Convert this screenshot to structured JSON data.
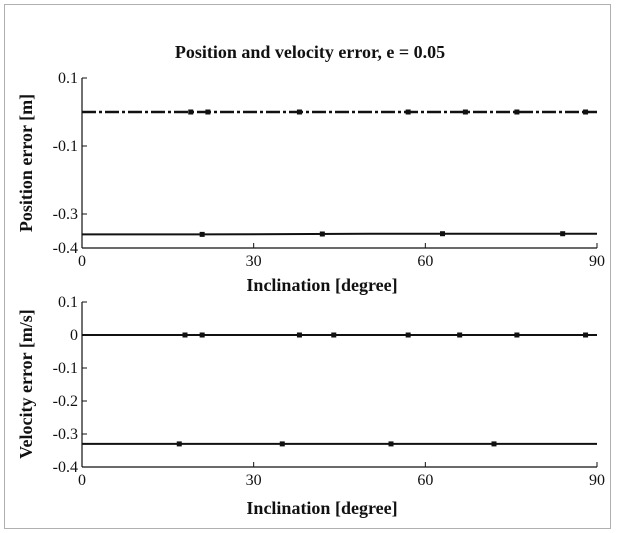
{
  "title": "Position and velocity error, e = 0.05",
  "chart_data": [
    {
      "type": "line",
      "xlabel": "Inclination [degree]",
      "ylabel": "Position error [m]",
      "xlim": [
        0,
        90
      ],
      "ylim": [
        -0.4,
        0.1
      ],
      "x_ticks": [
        "0",
        "30",
        "60",
        "90"
      ],
      "y_ticks": [
        "0.1",
        "-0.1",
        "-0.3",
        "-0.4"
      ],
      "y_tick_values": [
        0.1,
        -0.1,
        -0.3,
        -0.4
      ],
      "grid": false,
      "series": [
        {
          "style": "dashed",
          "x": [
            0,
            20,
            38,
            58,
            75,
            90
          ],
          "values": [
            0.0,
            0.0,
            0.0,
            0.0,
            0.0,
            0.0
          ],
          "marker_x": [
            19,
            22,
            38,
            57,
            67,
            76,
            88
          ]
        },
        {
          "style": "solid",
          "x": [
            0,
            20,
            40,
            50,
            60,
            80,
            90
          ],
          "values": [
            -0.36,
            -0.36,
            -0.359,
            -0.358,
            -0.358,
            -0.358,
            -0.358
          ],
          "marker_x": [
            21,
            42,
            63,
            84
          ]
        }
      ]
    },
    {
      "type": "line",
      "xlabel": "Inclination [degree]",
      "ylabel": "Velocity error [m/s]",
      "xlim": [
        0,
        90
      ],
      "ylim": [
        -0.4,
        0.1
      ],
      "x_ticks": [
        "0",
        "30",
        "60",
        "90"
      ],
      "y_ticks": [
        "0.1",
        "0",
        "-0.1",
        "-0.2",
        "-0.3",
        "-0.4"
      ],
      "y_tick_values": [
        0.1,
        0.0,
        -0.1,
        -0.2,
        -0.3,
        -0.4
      ],
      "grid": false,
      "series": [
        {
          "style": "solid",
          "x": [
            0,
            30,
            60,
            90
          ],
          "values": [
            0.0,
            0.0,
            0.0,
            0.0
          ],
          "marker_x": [
            18,
            21,
            38,
            44,
            57,
            66,
            76,
            88
          ]
        },
        {
          "style": "solid",
          "x": [
            0,
            30,
            60,
            90
          ],
          "values": [
            -0.33,
            -0.33,
            -0.33,
            -0.33
          ],
          "marker_x": [
            17,
            35,
            54,
            72
          ]
        }
      ]
    }
  ]
}
